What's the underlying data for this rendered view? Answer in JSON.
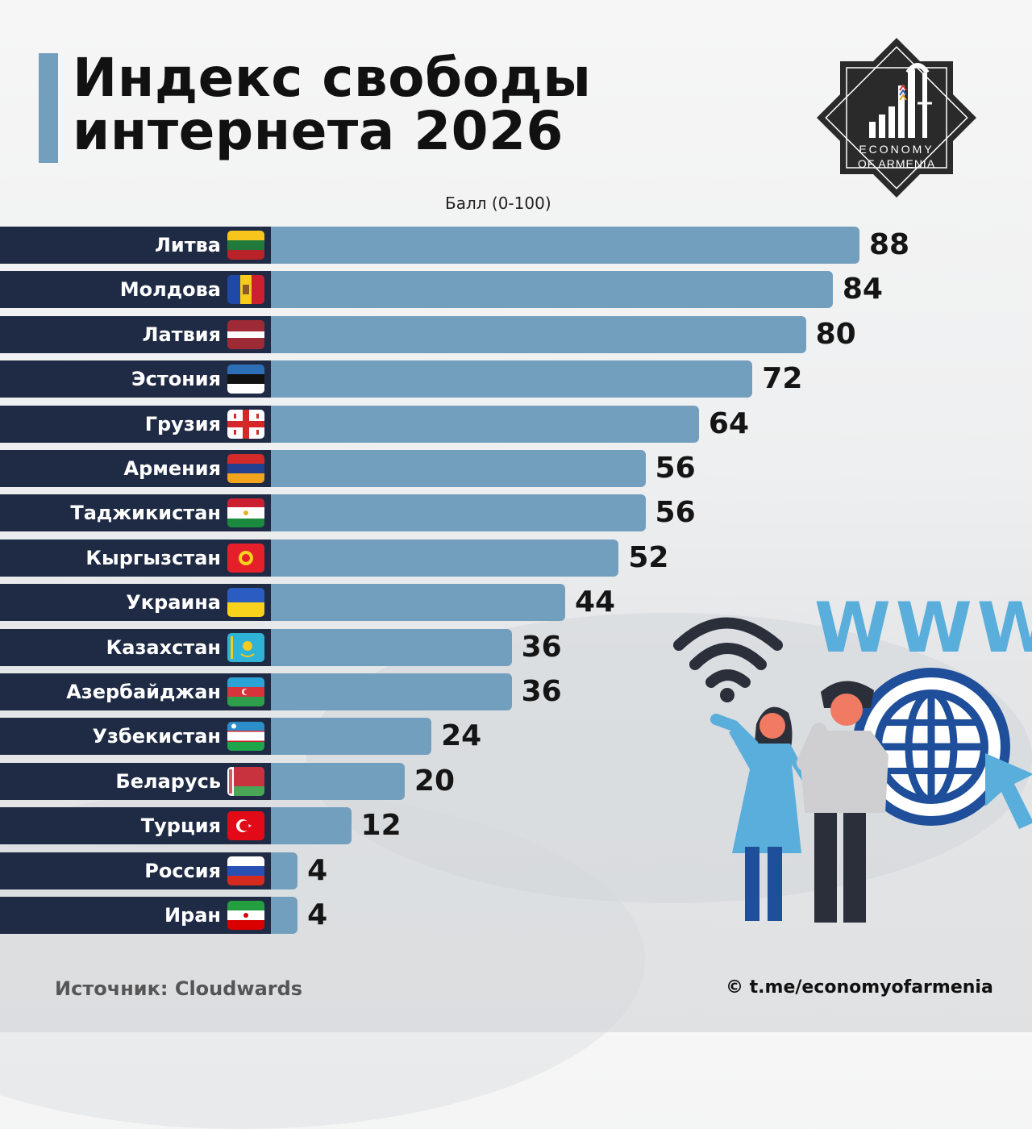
{
  "title_line1": "Индекс свободы",
  "title_line2": "интернета 2026",
  "logo": {
    "line1": "ECONOMY",
    "line2": "OF ARMENIA"
  },
  "illustration": {
    "text": "WWW"
  },
  "footer": {
    "source": "Источник: Cloudwards",
    "copyright": "©  t.me/economyofarmenia"
  },
  "colors": {
    "bar": "#739fbe",
    "label_band": "#1f2b45",
    "title_accent": "#739fbe"
  },
  "chart_data": {
    "type": "bar",
    "orientation": "horizontal",
    "title": "Индекс свободы интернета 2026",
    "unit_label": "Балл (0-100)",
    "xlim": [
      0,
      100
    ],
    "categories": [
      "Литва",
      "Молдова",
      "Латвия",
      "Эстония",
      "Грузия",
      "Армения",
      "Таджикистан",
      "Кыргызстан",
      "Украина",
      "Казахстан",
      "Азербайджан",
      "Узбекистан",
      "Беларусь",
      "Турция",
      "Россия",
      "Иран"
    ],
    "values": [
      88,
      84,
      80,
      72,
      64,
      56,
      56,
      52,
      44,
      36,
      36,
      24,
      20,
      12,
      4,
      4
    ],
    "flags": [
      "lithuania-flag",
      "moldova-flag",
      "latvia-flag",
      "estonia-flag",
      "georgia-flag",
      "armenia-flag",
      "tajikistan-flag",
      "kyrgyzstan-flag",
      "ukraine-flag",
      "kazakhstan-flag",
      "azerbaijan-flag",
      "uzbekistan-flag",
      "belarus-flag",
      "turkey-flag",
      "russia-flag",
      "iran-flag"
    ]
  }
}
